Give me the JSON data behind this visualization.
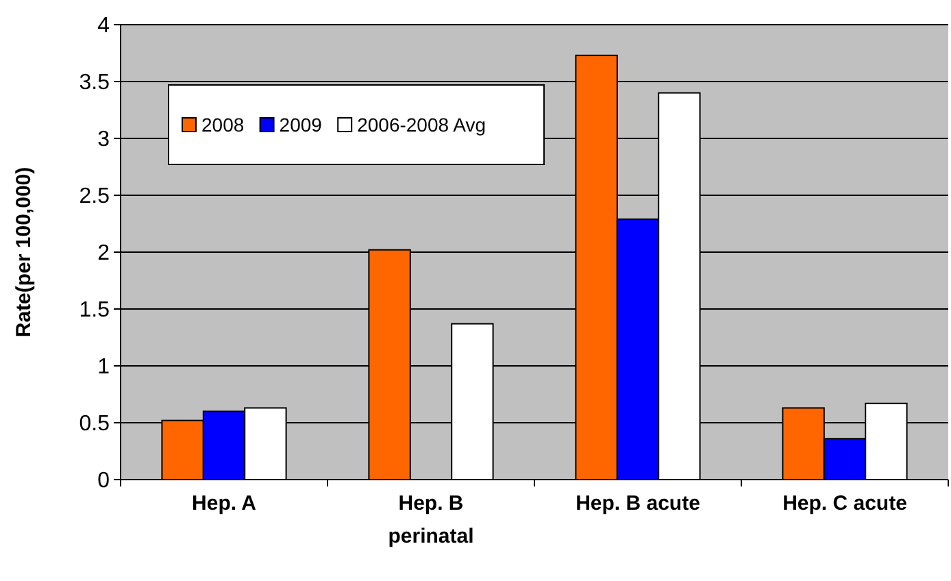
{
  "chart_data": {
    "type": "bar",
    "ylabel": "Rate(per 100,000)",
    "categories": [
      "Hep. A",
      "Hep. B perinatal",
      "Hep. B acute",
      "Hep. C acute"
    ],
    "series": [
      {
        "name": "2008",
        "color": "#ff6600",
        "values": [
          0.52,
          2.02,
          3.73,
          0.63
        ]
      },
      {
        "name": "2009",
        "color": "#0000ff",
        "values": [
          0.6,
          null,
          2.29,
          0.36
        ]
      },
      {
        "name": "2006-2008 Avg",
        "color": "#ffffff",
        "values": [
          0.63,
          1.37,
          3.4,
          0.67
        ]
      }
    ],
    "ylim": [
      0,
      4
    ],
    "yticks": [
      0,
      0.5,
      1,
      1.5,
      2,
      2.5,
      3,
      3.5,
      4
    ],
    "grid": "y",
    "legend": "top left"
  }
}
